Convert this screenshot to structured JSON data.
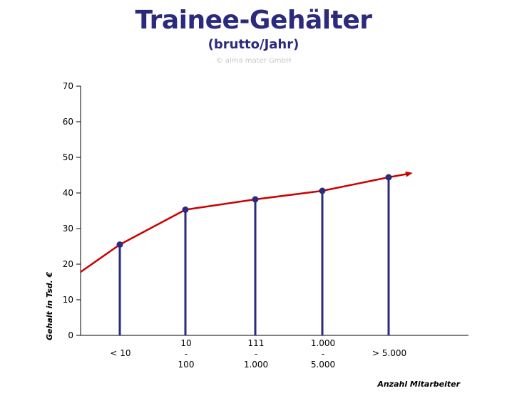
{
  "header": {
    "title": "Trainee-Gehälter",
    "subtitle": "(brutto/Jahr)",
    "credit": "© alma mater GmbH"
  },
  "colors": {
    "title": "#2b2a7c",
    "stems": "#2b2a7c",
    "markers": "#2b2a7c",
    "trend": "#cc0000",
    "axis": "#000000"
  },
  "chart_data": {
    "type": "line",
    "title": "Trainee-Gehälter",
    "subtitle": "(brutto/Jahr)",
    "xlabel": "Anzahl Mitarbeiter",
    "ylabel": "Gehalt in Tsd. €",
    "ylim": [
      0,
      70
    ],
    "yticks": [
      0,
      10,
      20,
      30,
      40,
      50,
      60,
      70
    ],
    "grid": false,
    "categories": [
      [
        "< 10"
      ],
      [
        "10",
        "-",
        "100"
      ],
      [
        "111",
        "-",
        "1.000"
      ],
      [
        "1.000",
        "-",
        "5.000"
      ],
      [
        "> 5.000"
      ]
    ],
    "series": [
      {
        "values": [
          25.5,
          35.3,
          38.2,
          40.6,
          44.4
        ]
      }
    ]
  }
}
